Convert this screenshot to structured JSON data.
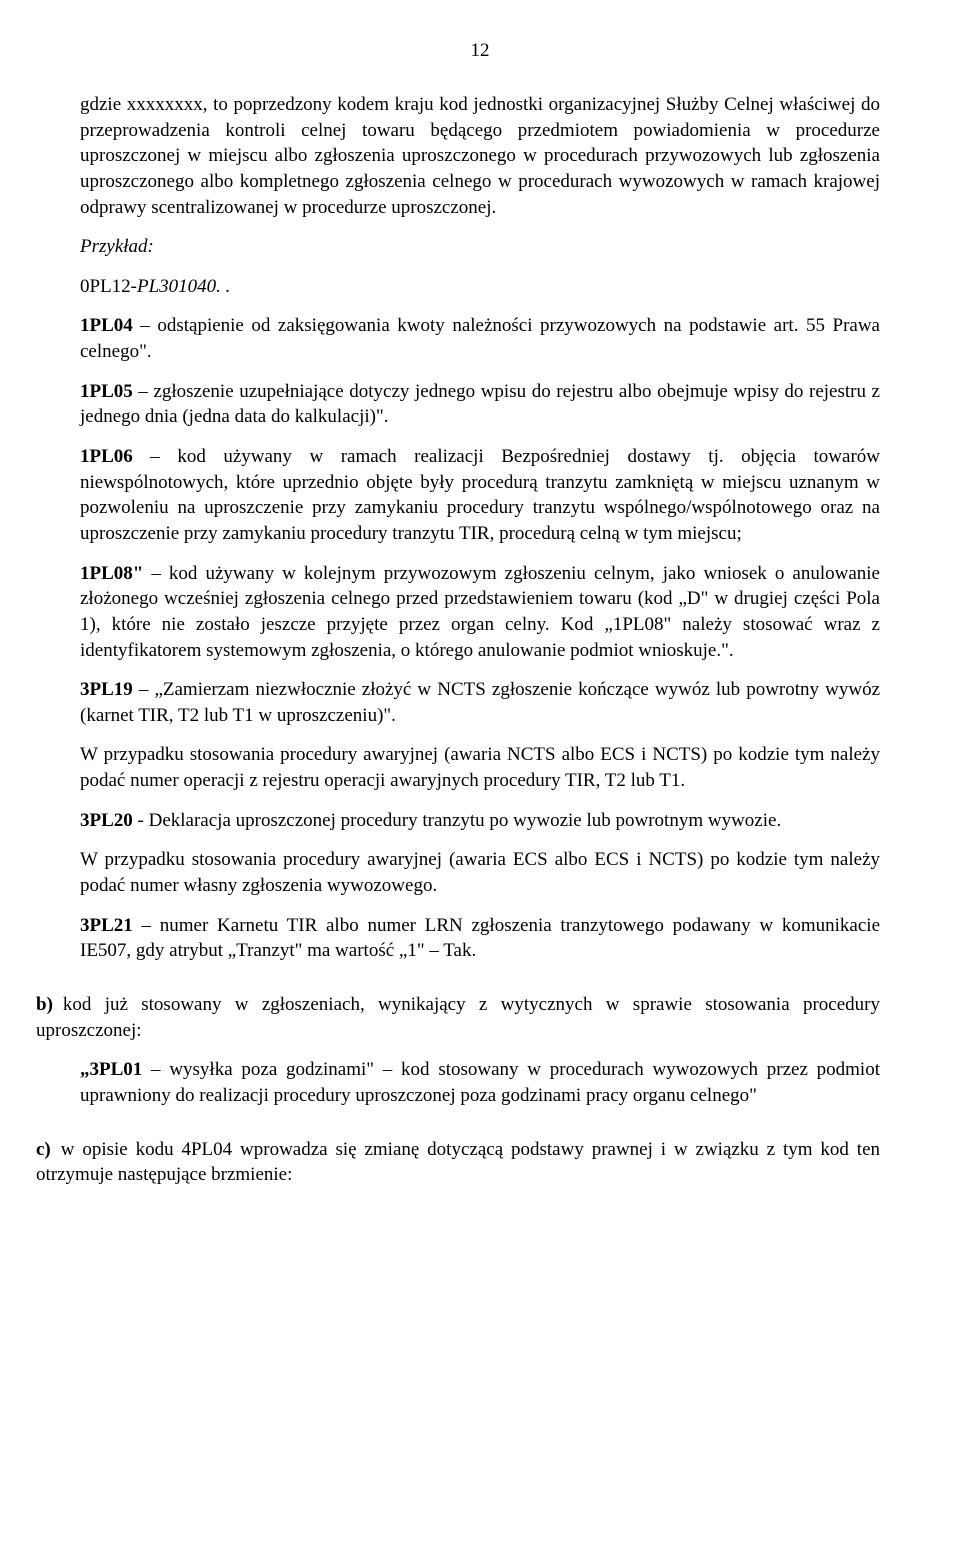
{
  "pageNumber": "12",
  "paragraphs": {
    "p1": "gdzie xxxxxxxx, to poprzedzony kodem kraju kod jednostki organizacyjnej Służby Celnej właściwej do przeprowadzenia kontroli celnej towaru będącego przedmiotem powiadomienia w procedurze uproszczonej w miejscu albo zgłoszenia uproszczonego w procedurach przywozowych lub zgłoszenia uproszczonego albo kompletnego zgłoszenia celnego w procedurach wywozowych w ramach krajowej odprawy scentralizowanej w procedurze uproszczonej.",
    "p2": "Przykład:",
    "p3a": "0PL12-",
    "p3b": "PL301040. .",
    "p4a": "1PL04",
    "p4b": " – odstąpienie od zaksięgowania kwoty należności przywozowych na podstawie art. 55 Prawa celnego\".",
    "p5a": "1PL05",
    "p5b": " – zgłoszenie uzupełniające dotyczy jednego wpisu do rejestru albo obejmuje wpisy do rejestru z jednego dnia (jedna data do kalkulacji)\".",
    "p6a": "1PL06",
    "p6b": " – kod używany w ramach realizacji Bezpośredniej dostawy tj. objęcia towarów niewspólnotowych, które uprzednio objęte były procedurą tranzytu zamkniętą w miejscu uznanym w pozwoleniu na uproszczenie przy zamykaniu procedury tranzytu wspólnego/wspólnotowego oraz na uproszczenie przy zamykaniu procedury tranzytu TIR, procedurą celną w tym miejscu;",
    "p7a": "1PL08\"",
    "p7b": " – kod używany w kolejnym przywozowym zgłoszeniu celnym, jako wniosek o anulowanie złożonego wcześniej zgłoszenia celnego przed przedstawieniem towaru (kod „D\" w drugiej części Pola 1), które nie zostało jeszcze przyjęte przez organ celny. Kod „1PL08\" należy stosować wraz z identyfikatorem systemowym zgłoszenia, o którego anulowanie podmiot wnioskuje.\".",
    "p8a": "3PL19",
    "p8b": " – „Zamierzam niezwłocznie złożyć w NCTS zgłoszenie kończące wywóz lub powrotny wywóz (karnet TIR, T2 lub T1 w uproszczeniu)\".",
    "p9": "W przypadku stosowania procedury awaryjnej (awaria NCTS albo ECS i NCTS) po kodzie tym należy podać numer operacji z rejestru operacji awaryjnych procedury TIR, T2 lub T1.",
    "p10a": "3PL20",
    "p10b": " - Deklaracja uproszczonej procedury tranzytu po wywozie lub powrotnym wywozie.",
    "p11": "W przypadku stosowania procedury awaryjnej (awaria ECS albo ECS i NCTS) po kodzie tym należy podać numer własny zgłoszenia wywozowego.",
    "p12a": "3PL21",
    "p12b": " – numer Karnetu TIR albo numer LRN zgłoszenia tranzytowego podawany w komunikacie IE507, gdy atrybut „Tranzyt\" ma wartość „1\" – Tak.",
    "bMarker": "b)",
    "bBody": "kod już stosowany w zgłoszeniach, wynikający z wytycznych w sprawie stosowania procedury uproszczonej:",
    "bQa": "„3PL01",
    "bQb": " – wysyłka poza godzinami\" – kod stosowany w procedurach wywozowych przez podmiot uprawniony do realizacji procedury uproszczonej poza godzinami pracy organu celnego\"",
    "cMarker": "c)",
    "cBody": "w opisie kodu 4PL04 wprowadza się zmianę dotyczącą podstawy prawnej i w związku z tym kod ten otrzymuje następujące brzmienie:"
  }
}
